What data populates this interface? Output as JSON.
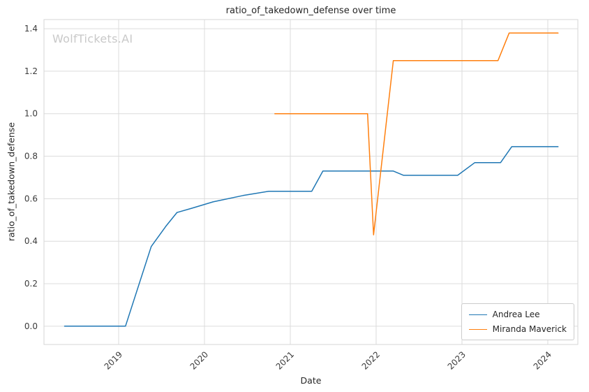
{
  "watermark": "WolfTickets.AI",
  "chart_data": {
    "type": "line",
    "title": "ratio_of_takedown_defense over time",
    "xlabel": "Date",
    "ylabel": "ratio_of_takedown_defense",
    "x_unit": "decimal_year",
    "xlim": [
      2018.13,
      2024.35
    ],
    "ylim": [
      -0.086,
      1.443
    ],
    "grid": true,
    "legend_position": "lower right",
    "xticks": [
      2019,
      2020,
      2021,
      2022,
      2023,
      2024
    ],
    "xtick_labels": [
      "2019",
      "2020",
      "2021",
      "2022",
      "2023",
      "2024"
    ],
    "yticks": [
      0.0,
      0.2,
      0.4,
      0.6,
      0.8,
      1.0,
      1.2,
      1.4
    ],
    "ytick_labels": [
      "0.0",
      "0.2",
      "0.4",
      "0.6",
      "0.8",
      "1.0",
      "1.2",
      "1.4"
    ],
    "series": [
      {
        "name": "Andrea Lee",
        "color": "#1f77b4",
        "points": [
          [
            2018.37,
            0.0
          ],
          [
            2019.08,
            0.0
          ],
          [
            2019.38,
            0.375
          ],
          [
            2019.55,
            0.47
          ],
          [
            2019.68,
            0.535
          ],
          [
            2019.85,
            0.555
          ],
          [
            2020.1,
            0.585
          ],
          [
            2020.45,
            0.615
          ],
          [
            2020.75,
            0.635
          ],
          [
            2021.25,
            0.635
          ],
          [
            2021.38,
            0.73
          ],
          [
            2022.2,
            0.73
          ],
          [
            2022.32,
            0.71
          ],
          [
            2022.95,
            0.71
          ],
          [
            2023.15,
            0.77
          ],
          [
            2023.45,
            0.77
          ],
          [
            2023.58,
            0.845
          ],
          [
            2024.12,
            0.845
          ]
        ]
      },
      {
        "name": "Miranda Maverick",
        "color": "#ff7f0e",
        "points": [
          [
            2020.82,
            1.0
          ],
          [
            2021.9,
            1.0
          ],
          [
            2021.97,
            0.43
          ],
          [
            2022.2,
            1.25
          ],
          [
            2023.42,
            1.25
          ],
          [
            2023.55,
            1.38
          ],
          [
            2024.12,
            1.38
          ]
        ]
      }
    ]
  }
}
